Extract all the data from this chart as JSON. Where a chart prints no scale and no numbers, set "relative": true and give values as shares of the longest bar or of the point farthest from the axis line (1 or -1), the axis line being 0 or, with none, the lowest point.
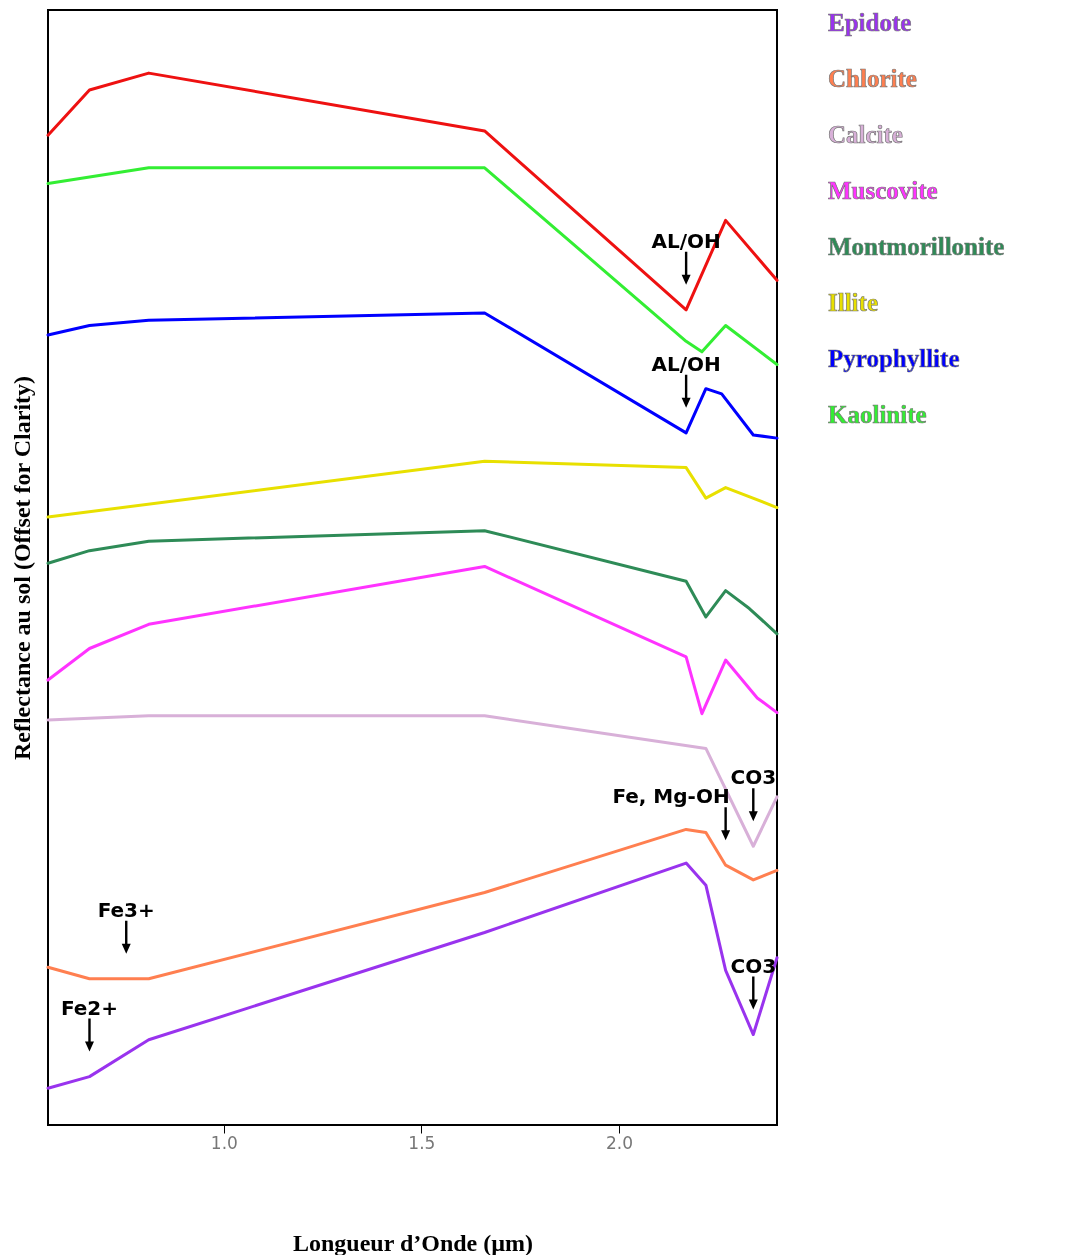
{
  "chart_data": {
    "type": "line",
    "relative": true,
    "xlabel": "Longueur d’Onde (µm)",
    "ylabel": "Reflectance au sol (Offset for Clarity)",
    "xlim": [
      0.555,
      2.4
    ],
    "xticks": [
      {
        "value": 1,
        "label": "1.0"
      },
      {
        "value": 1.5,
        "label": "1.5"
      },
      {
        "value": 2,
        "label": "2.0"
      }
    ],
    "grid": false,
    "legend": "right",
    "series": [
      {
        "name": "Epidote",
        "color": "#9933ee",
        "x": [
          0.555,
          0.66,
          0.81,
          1.66,
          2.17,
          2.22,
          2.27,
          2.34,
          2.4
        ],
        "values": [
          0.035,
          0.046,
          0.081,
          0.183,
          0.249,
          0.228,
          0.147,
          0.086,
          0.159
        ]
      },
      {
        "name": "Chlorite",
        "color": "#ff7f50",
        "x": [
          0.555,
          0.66,
          0.81,
          1.66,
          2.17,
          2.22,
          2.27,
          2.34,
          2.4
        ],
        "values": [
          0.15,
          0.139,
          0.139,
          0.221,
          0.281,
          0.278,
          0.247,
          0.233,
          0.242
        ]
      },
      {
        "name": "Calcite",
        "color": "#d8b0d8",
        "x": [
          0.555,
          0.81,
          1.66,
          2.22,
          2.34,
          2.4
        ],
        "values": [
          0.385,
          0.389,
          0.389,
          0.358,
          0.265,
          0.312
        ]
      },
      {
        "name": "Muscovite",
        "color": "#ff33ff",
        "x": [
          0.555,
          0.66,
          0.81,
          1.66,
          2.17,
          2.21,
          2.27,
          2.35,
          2.4
        ],
        "values": [
          0.423,
          0.453,
          0.476,
          0.531,
          0.445,
          0.391,
          0.442,
          0.406,
          0.392
        ]
      },
      {
        "name": "Montmorillonite",
        "color": "#2e8b57",
        "x": [
          0.555,
          0.66,
          0.81,
          1.66,
          2.17,
          2.22,
          2.27,
          2.33,
          2.4
        ],
        "values": [
          0.534,
          0.546,
          0.555,
          0.565,
          0.517,
          0.483,
          0.508,
          0.491,
          0.467
        ]
      },
      {
        "name": "Illite",
        "color": "#e8e000",
        "x": [
          0.555,
          1.66,
          2.17,
          2.22,
          2.27,
          2.4
        ],
        "values": [
          0.578,
          0.631,
          0.625,
          0.596,
          0.606,
          0.587
        ]
      },
      {
        "name": "Pyrophyllite",
        "color": "#0000ff",
        "x": [
          0.555,
          0.66,
          0.81,
          1.66,
          2.17,
          2.22,
          2.26,
          2.34,
          2.4
        ],
        "values": [
          0.751,
          0.76,
          0.765,
          0.772,
          0.658,
          0.7,
          0.695,
          0.656,
          0.653
        ]
      },
      {
        "name": "Kaolinite",
        "color": "#33ee33",
        "x": [
          0.555,
          0.81,
          1.66,
          2.17,
          2.21,
          2.27,
          2.4
        ],
        "values": [
          0.895,
          0.91,
          0.91,
          0.745,
          0.735,
          0.76,
          0.723
        ]
      },
      {
        "color": "#ee1111",
        "x": [
          0.555,
          0.66,
          0.81,
          1.66,
          2.17,
          2.27,
          2.4
        ],
        "values": [
          0.941,
          0.984,
          1.0,
          0.945,
          0.775,
          0.86,
          0.803
        ]
      }
    ],
    "annotations": [
      {
        "text": "AL/OH",
        "x": 2.17,
        "y": 0.775
      },
      {
        "text": "AL/OH",
        "x": 2.17,
        "y": 0.658
      },
      {
        "text": "CO3",
        "x": 2.34,
        "y": 0.265
      },
      {
        "text": "Fe, Mg-OH",
        "x": 2.27,
        "y": 0.247
      },
      {
        "text": "Fe3+",
        "x": 0.753,
        "y": 0.139
      },
      {
        "text": "CO3",
        "x": 2.34,
        "y": 0.086
      },
      {
        "text": "Fe2+",
        "x": 0.66,
        "y": 0.046
      }
    ]
  }
}
